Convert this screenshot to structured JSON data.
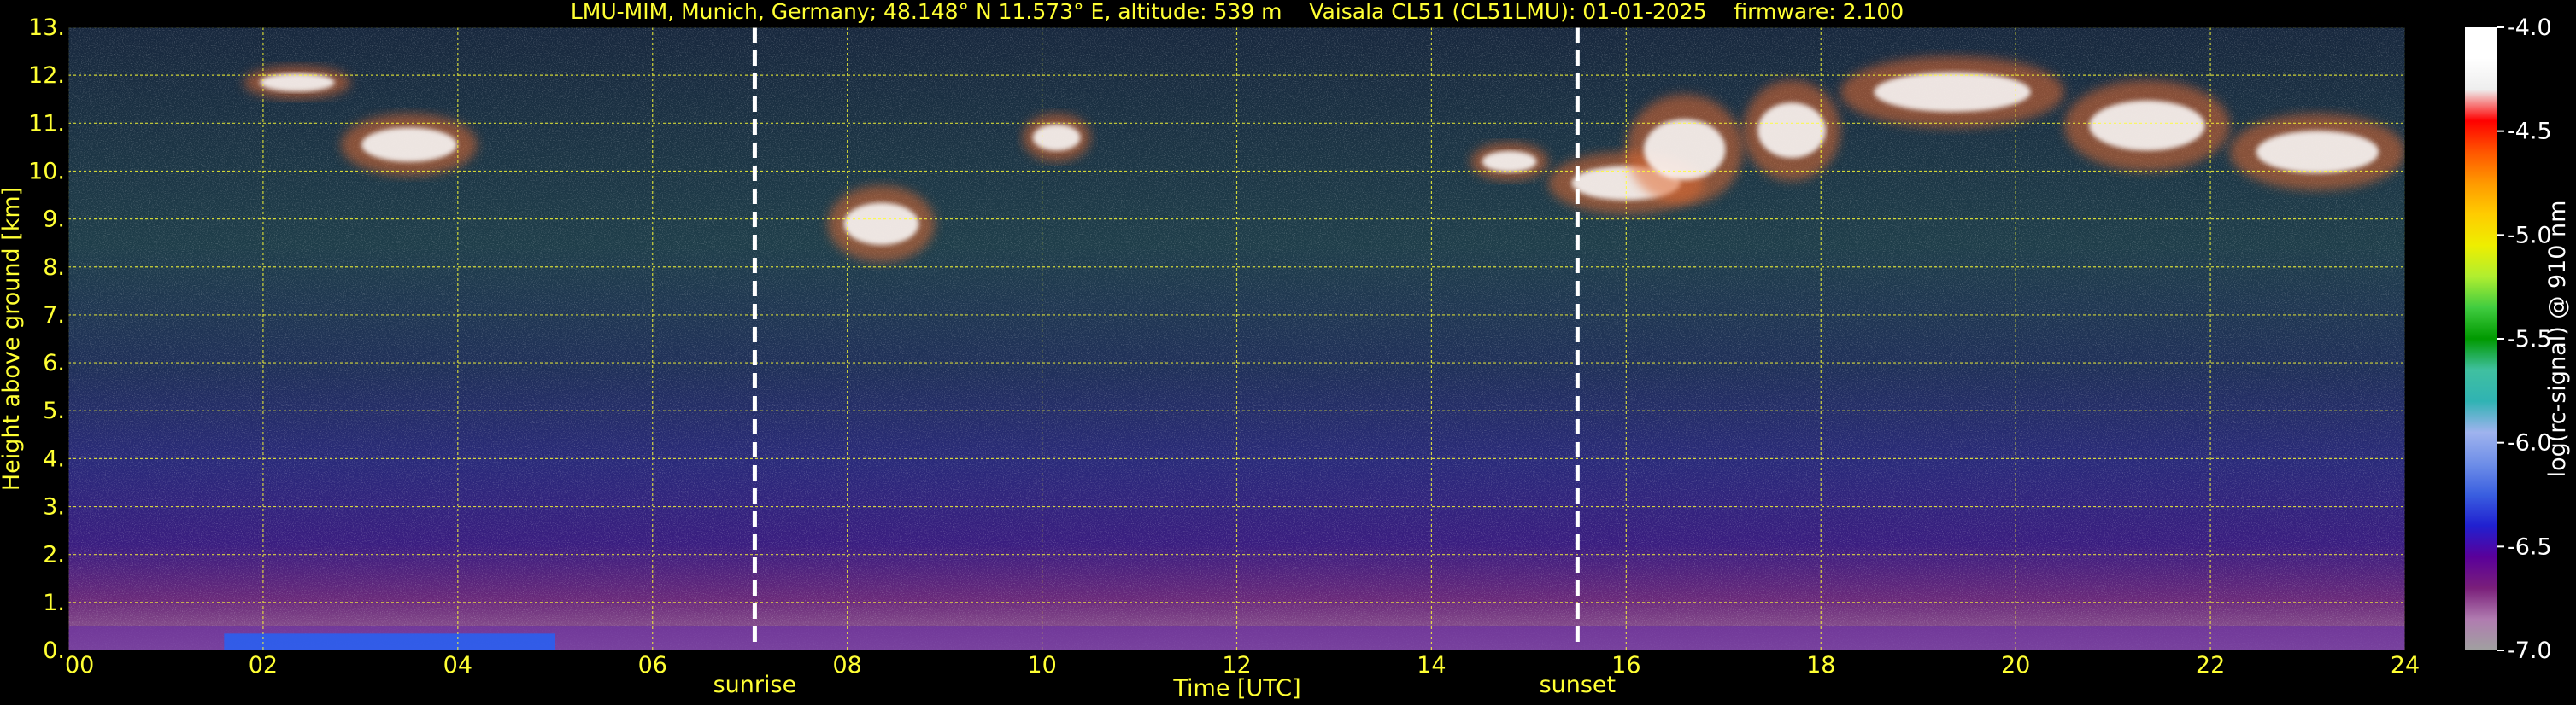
{
  "chart_data": {
    "type": "heatmap",
    "title": "LMU-MIM, Munich, Germany; 48.148° N 11.573° E, altitude: 539 m    Vaisala CL51 (CL51LMU): 01-01-2025    firmware: 2.100",
    "xlabel": "Time [UTC]",
    "ylabel": "Height above ground [km]",
    "xlim": [
      0,
      24
    ],
    "ylim": [
      0,
      13
    ],
    "x_ticks": [
      "00",
      "02",
      "04",
      "06",
      "08",
      "10",
      "12",
      "14",
      "16",
      "18",
      "20",
      "22",
      "24"
    ],
    "y_ticks": [
      "0.",
      "1.",
      "2.",
      "3.",
      "4.",
      "5.",
      "6.",
      "7.",
      "8.",
      "9.",
      "10.",
      "11.",
      "12.",
      "13."
    ],
    "grid": true,
    "markers": [
      {
        "label": "sunrise",
        "x": 7.05
      },
      {
        "label": "sunset",
        "x": 15.5
      }
    ],
    "colorbar": {
      "label": "log(rc-signal) @ 910 nm",
      "range": [
        -7.0,
        -4.0
      ],
      "ticks": [
        "-4.0",
        "-4.5",
        "-5.0",
        "-5.5",
        "-6.0",
        "-6.5",
        "-7.0"
      ]
    },
    "cloud_layers": [
      {
        "t_start": 1.8,
        "t_end": 2.9,
        "z_bottom": 11.5,
        "z_top": 12.2
      },
      {
        "t_start": 2.8,
        "t_end": 4.2,
        "z_bottom": 9.9,
        "z_top": 11.2
      },
      {
        "t_start": 7.8,
        "t_end": 8.9,
        "z_bottom": 8.1,
        "z_top": 9.7
      },
      {
        "t_start": 9.8,
        "t_end": 10.5,
        "z_bottom": 10.2,
        "z_top": 11.2
      },
      {
        "t_start": 14.4,
        "t_end": 15.2,
        "z_bottom": 9.8,
        "z_top": 10.6
      },
      {
        "t_start": 15.2,
        "t_end": 16.8,
        "z_bottom": 9.1,
        "z_top": 10.4
      },
      {
        "t_start": 16.0,
        "t_end": 17.2,
        "z_bottom": 9.3,
        "z_top": 11.6
      },
      {
        "t_start": 17.2,
        "t_end": 18.2,
        "z_bottom": 9.8,
        "z_top": 11.9
      },
      {
        "t_start": 18.2,
        "t_end": 20.5,
        "z_bottom": 10.9,
        "z_top": 12.4
      },
      {
        "t_start": 20.5,
        "t_end": 22.2,
        "z_bottom": 10.0,
        "z_top": 11.9
      },
      {
        "t_start": 22.2,
        "t_end": 24.0,
        "z_bottom": 9.6,
        "z_top": 11.2
      }
    ],
    "boundary_layer_top_km": 0.5
  },
  "colors": {
    "text": "#ffff33",
    "grid": "#ffff33",
    "background": "#000000",
    "colormap": [
      "#a0a0a0",
      "#b07cb0",
      "#7a1f7a",
      "#5a009a",
      "#2020d0",
      "#3a5fe0",
      "#6f8fe8",
      "#9fb3ee",
      "#30b3b3",
      "#40c0a0",
      "#009900",
      "#40cc40",
      "#b0ee30",
      "#eeee00",
      "#ffcc00",
      "#ff9900",
      "#ff5500",
      "#ff0000",
      "#eeeeee",
      "#ffffff",
      "#ffffff"
    ]
  }
}
